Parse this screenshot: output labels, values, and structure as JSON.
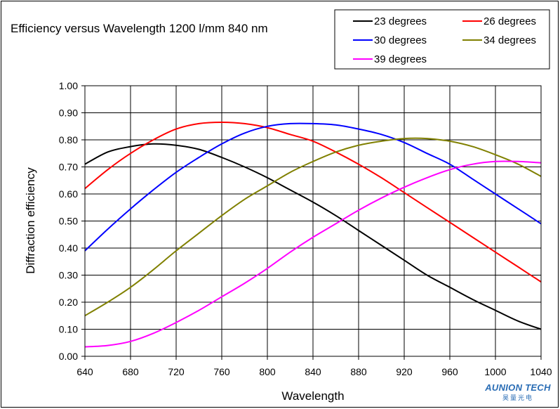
{
  "chart_data": {
    "type": "line",
    "title": "Efficiency versus Wavelength  1200 l/mm 840 nm",
    "xlabel": "Wavelength",
    "ylabel": "Diffraction efficiency",
    "xlim": [
      640,
      1040
    ],
    "ylim": [
      0.0,
      1.0
    ],
    "x_ticks": [
      "640",
      "680",
      "720",
      "760",
      "800",
      "840",
      "880",
      "920",
      "960",
      "1000",
      "1040"
    ],
    "y_ticks": [
      "0.00",
      "0.10",
      "0.20",
      "0.30",
      "0.40",
      "0.50",
      "0.60",
      "0.70",
      "0.80",
      "0.90",
      "1.00"
    ],
    "grid": true,
    "legend_position": "top-right",
    "x": [
      640,
      660,
      680,
      700,
      720,
      740,
      760,
      780,
      800,
      820,
      840,
      860,
      880,
      900,
      920,
      940,
      960,
      980,
      1000,
      1020,
      1040
    ],
    "series": [
      {
        "name": "23 degrees",
        "color": "#000000",
        "values": [
          0.71,
          0.755,
          0.775,
          0.785,
          0.78,
          0.765,
          0.735,
          0.7,
          0.66,
          0.615,
          0.57,
          0.52,
          0.465,
          0.41,
          0.355,
          0.3,
          0.255,
          0.21,
          0.17,
          0.13,
          0.1
        ]
      },
      {
        "name": "26 degrees",
        "color": "#ff0000",
        "values": [
          0.62,
          0.69,
          0.75,
          0.8,
          0.84,
          0.86,
          0.865,
          0.86,
          0.845,
          0.82,
          0.795,
          0.755,
          0.71,
          0.66,
          0.605,
          0.55,
          0.495,
          0.44,
          0.385,
          0.33,
          0.275
        ]
      },
      {
        "name": "30 degrees",
        "color": "#0000ff",
        "values": [
          0.39,
          0.47,
          0.545,
          0.615,
          0.68,
          0.735,
          0.785,
          0.825,
          0.85,
          0.86,
          0.86,
          0.855,
          0.84,
          0.82,
          0.79,
          0.75,
          0.71,
          0.655,
          0.6,
          0.545,
          0.49
        ]
      },
      {
        "name": "34 degrees",
        "color": "#808000",
        "values": [
          0.15,
          0.2,
          0.255,
          0.32,
          0.39,
          0.455,
          0.52,
          0.58,
          0.63,
          0.68,
          0.72,
          0.755,
          0.78,
          0.795,
          0.805,
          0.805,
          0.795,
          0.775,
          0.745,
          0.71,
          0.665
        ]
      },
      {
        "name": "39 degrees",
        "color": "#ff00ff",
        "values": [
          0.035,
          0.04,
          0.055,
          0.085,
          0.125,
          0.17,
          0.22,
          0.27,
          0.325,
          0.385,
          0.44,
          0.49,
          0.54,
          0.585,
          0.625,
          0.66,
          0.69,
          0.71,
          0.72,
          0.72,
          0.715
        ]
      }
    ]
  },
  "watermark": {
    "text": "AUNION TECH",
    "subtext": "昊量光电"
  }
}
